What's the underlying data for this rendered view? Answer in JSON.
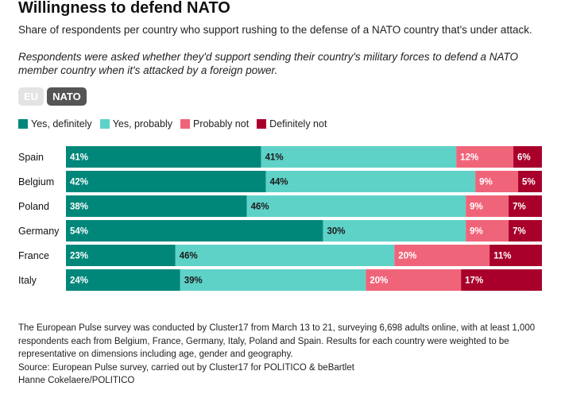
{
  "title": "Willingness to defend NATO",
  "subtitle": "Share of respondents per country who support rushing to the defense of a NATO country that's under attack.",
  "note": "Respondents were asked whether they'd support sending their country's military forces to defend a NATO member country when it's attacked by a foreign power.",
  "toggle": {
    "eu_label": "EU",
    "nato_label": "NATO",
    "selected": "NATO"
  },
  "colors": {
    "yes_definitely": "#00877a",
    "yes_probably": "#5fd2c8",
    "probably_not": "#f0647a",
    "definitely_not": "#a8002b"
  },
  "chart_data": {
    "type": "bar",
    "orientation": "horizontal",
    "stacked": true,
    "title": "Willingness to defend NATO",
    "categories": [
      "Spain",
      "Belgium",
      "Poland",
      "Germany",
      "France",
      "Italy"
    ],
    "series": [
      {
        "name": "Yes, definitely",
        "key": "yes_definitely",
        "values": [
          41,
          42,
          38,
          54,
          23,
          24
        ],
        "labels": [
          "41%",
          "42%",
          "38%",
          "54%",
          "23%",
          "24%"
        ]
      },
      {
        "name": "Yes, probably",
        "key": "yes_probably",
        "values": [
          41,
          44,
          46,
          30,
          46,
          39
        ],
        "labels": [
          "41%",
          "44%",
          "46%",
          "30%",
          "46%",
          "39%"
        ]
      },
      {
        "name": "Probably not",
        "key": "probably_not",
        "values": [
          12,
          9,
          9,
          9,
          20,
          20
        ],
        "labels": [
          "12%",
          "9%",
          "9%",
          "9%",
          "20%",
          "20%"
        ]
      },
      {
        "name": "Definitely not",
        "key": "definitely_not",
        "values": [
          6,
          5,
          7,
          7,
          11,
          17
        ],
        "labels": [
          "6%",
          "5%",
          "7%",
          "7%",
          "11%",
          "17%"
        ]
      }
    ],
    "xlim": [
      0,
      100
    ],
    "legend": "top-left",
    "grid": false
  },
  "footer": {
    "methodology": "The European Pulse survey was conducted by Cluster17 from March 13 to 21, surveying 6,698 adults online, with at least 1,000 respondents each from Belgium, France, Germany, Italy, Poland and Spain. Results for each country were weighted to be representative on dimensions including age, gender and geography.",
    "source": "Source: European Pulse survey, carried out by Cluster17 for POLITICO & beBartlet",
    "credit": "Hanne Cokelaere/POLITICO"
  }
}
